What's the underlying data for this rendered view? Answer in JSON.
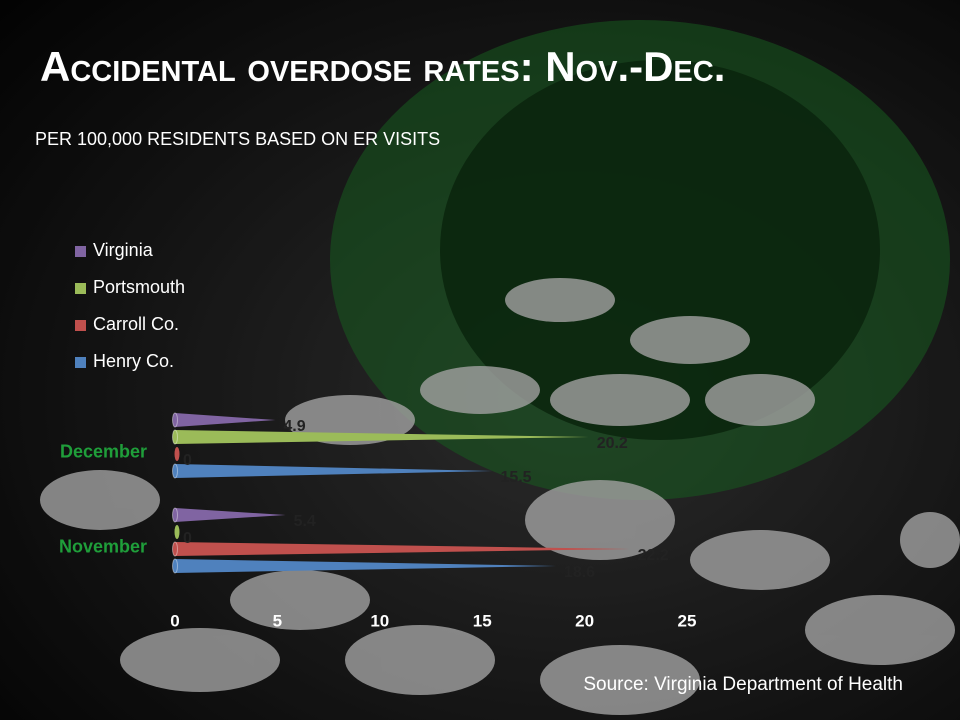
{
  "chart_data": {
    "type": "bar",
    "orientation": "horizontal",
    "title": "Accidental overdose rates: Nov.-Dec.",
    "subtitle": "PER 100,000 RESIDENTS BASED ON ER VISITS",
    "source": "Source: Virginia Department of Health",
    "categories": [
      "November",
      "December"
    ],
    "series": [
      {
        "name": "Henry Co.",
        "color": "#4f81bd",
        "values": [
          18.6,
          15.5
        ]
      },
      {
        "name": "Carroll Co.",
        "color": "#c0504d",
        "values": [
          22.2,
          0
        ]
      },
      {
        "name": "Portsmouth",
        "color": "#9bbb59",
        "values": [
          0,
          20.2
        ]
      },
      {
        "name": "Virginia",
        "color": "#8064a2",
        "values": [
          5.4,
          4.9
        ]
      }
    ],
    "xlim": [
      0,
      25
    ],
    "xticks": [
      0,
      5,
      10,
      15,
      20,
      25
    ]
  }
}
